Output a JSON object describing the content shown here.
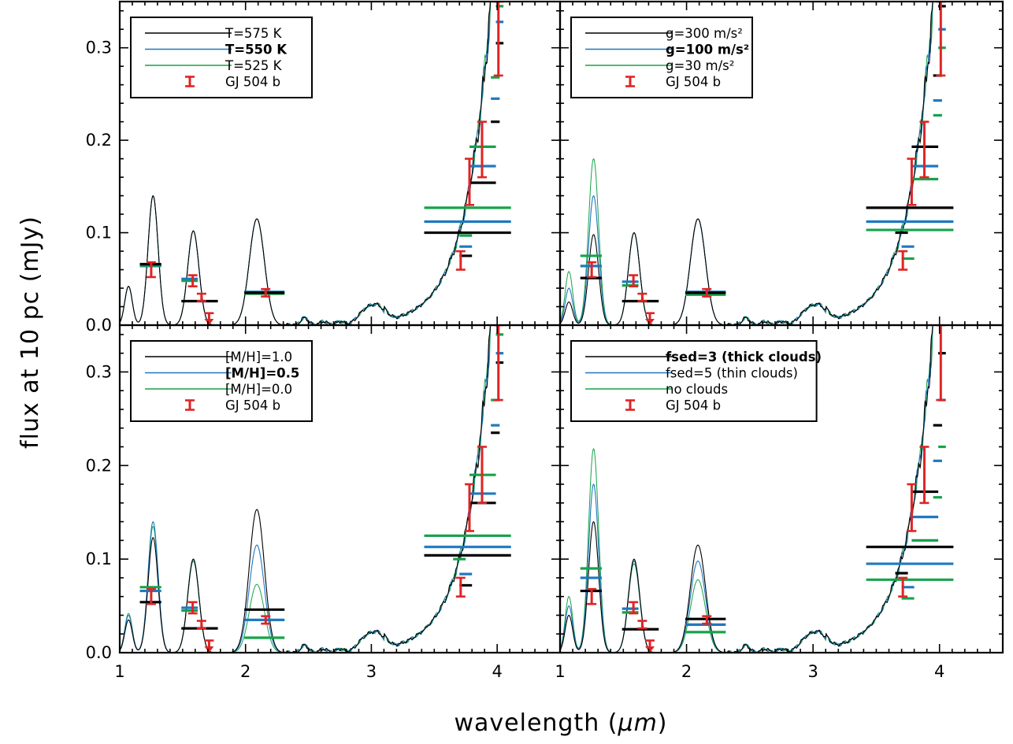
{
  "figure": {
    "xlabel_prefix": "wavelength (",
    "xlabel_symbol": "μm",
    "xlabel_suffix": ")",
    "ylabel": "flux at 10 pc (mJy)"
  },
  "colors": {
    "model_a": "#000000",
    "model_b": "#1f78c0",
    "model_c": "#16a34a",
    "observed": "#e02424"
  },
  "chart_data": [
    {
      "type": "line",
      "panel": "top-left",
      "xlim": [
        1.0,
        4.5
      ],
      "ylim": [
        0.0,
        0.35
      ],
      "xticks": [
        1,
        2,
        3,
        4
      ],
      "yticks": [
        0.0,
        0.1,
        0.2,
        0.3
      ],
      "ytick_labels": [
        "0.0",
        "0.1",
        "0.2",
        "0.3"
      ],
      "legend": {
        "position": "top-left",
        "entries": [
          {
            "label": "T=575 K",
            "color": "model_a",
            "bold": false
          },
          {
            "label": "T=550 K",
            "color": "model_b",
            "bold": true
          },
          {
            "label": "T=525 K",
            "color": "model_c",
            "bold": false
          },
          {
            "label": "GJ 504 b",
            "color": "observed",
            "marker": "errorbar"
          }
        ]
      },
      "spectra_peaks": {
        "model_a": [
          0.042,
          0.14,
          0.102,
          0.115
        ],
        "model_b": [
          0.042,
          0.14,
          0.102,
          0.115
        ],
        "model_c": [
          0.042,
          0.14,
          0.102,
          0.115
        ]
      },
      "band_fluxes": [
        {
          "series": "model_a",
          "bands": [
            [
              1.16,
              1.33,
              0.066
            ],
            [
              1.49,
              1.78,
              0.026
            ],
            [
              1.99,
              2.31,
              0.035
            ],
            [
              3.42,
              4.11,
              0.1
            ],
            [
              3.7,
              3.8,
              0.075
            ],
            [
              3.78,
              3.99,
              0.154
            ],
            [
              3.95,
              4.02,
              0.22
            ],
            [
              3.99,
              4.05,
              0.305
            ]
          ]
        },
        {
          "series": "model_b",
          "bands": [
            [
              1.16,
              1.33,
              0.065
            ],
            [
              1.49,
              1.62,
              0.05
            ],
            [
              1.99,
              2.31,
              0.036
            ],
            [
              3.42,
              4.11,
              0.112
            ],
            [
              3.7,
              3.8,
              0.085
            ],
            [
              3.78,
              3.99,
              0.172
            ],
            [
              3.95,
              4.02,
              0.245
            ],
            [
              3.99,
              4.05,
              0.328
            ]
          ]
        },
        {
          "series": "model_c",
          "bands": [
            [
              1.16,
              1.33,
              0.064
            ],
            [
              1.49,
              1.62,
              0.048
            ],
            [
              1.99,
              2.31,
              0.034
            ],
            [
              3.42,
              4.11,
              0.127
            ],
            [
              3.7,
              3.8,
              0.097
            ],
            [
              3.78,
              3.99,
              0.193
            ],
            [
              3.95,
              4.02,
              0.268
            ],
            [
              3.99,
              4.05,
              0.345
            ]
          ]
        }
      ],
      "observations": [
        {
          "x": 1.25,
          "y": 0.06,
          "lo": 0.052,
          "hi": 0.068
        },
        {
          "x": 1.58,
          "y": 0.048,
          "lo": 0.042,
          "hi": 0.054
        },
        {
          "x": 1.65,
          "y": 0.03,
          "lo": 0.026,
          "hi": 0.034
        },
        {
          "x": 1.71,
          "y": 0.005,
          "lo": 0.0,
          "hi": 0.013,
          "upper_limit": true
        },
        {
          "x": 2.16,
          "y": 0.035,
          "lo": 0.031,
          "hi": 0.039
        },
        {
          "x": 3.71,
          "y": 0.07,
          "lo": 0.06,
          "hi": 0.08
        },
        {
          "x": 3.78,
          "y": 0.155,
          "lo": 0.13,
          "hi": 0.18
        },
        {
          "x": 3.88,
          "y": 0.19,
          "lo": 0.16,
          "hi": 0.22
        },
        {
          "x": 4.01,
          "y": 0.31,
          "lo": 0.27,
          "hi": 0.35
        }
      ]
    },
    {
      "type": "line",
      "panel": "top-right",
      "xlim": [
        1.0,
        4.5
      ],
      "ylim": [
        0.0,
        0.35
      ],
      "xticks": [
        1,
        2,
        3,
        4
      ],
      "yticks": [
        0.0,
        0.1,
        0.2,
        0.3
      ],
      "ytick_labels": [
        "",
        "",
        "",
        ""
      ],
      "legend": {
        "position": "top-left",
        "entries": [
          {
            "label": "g=300 m/s²",
            "color": "model_a",
            "bold": false
          },
          {
            "label": "g=100 m/s²",
            "color": "model_b",
            "bold": true
          },
          {
            "label": "g=30 m/s²",
            "color": "model_c",
            "bold": false
          },
          {
            "label": "GJ 504 b",
            "color": "observed",
            "marker": "errorbar"
          }
        ]
      },
      "spectra_peaks": {
        "model_a": [
          0.025,
          0.098,
          0.1,
          0.115
        ],
        "model_b": [
          0.04,
          0.14,
          0.1,
          0.115
        ],
        "model_c": [
          0.058,
          0.18,
          0.1,
          0.115
        ]
      },
      "band_fluxes": [
        {
          "series": "model_a",
          "bands": [
            [
              1.16,
              1.33,
              0.051
            ],
            [
              1.49,
              1.78,
              0.026
            ],
            [
              1.99,
              2.31,
              0.035
            ],
            [
              3.42,
              4.11,
              0.127
            ],
            [
              3.65,
              3.75,
              0.1
            ],
            [
              3.78,
              3.99,
              0.193
            ],
            [
              3.95,
              4.02,
              0.27
            ],
            [
              3.99,
              4.05,
              0.345
            ]
          ]
        },
        {
          "series": "model_b",
          "bands": [
            [
              1.16,
              1.33,
              0.064
            ],
            [
              1.49,
              1.62,
              0.047
            ],
            [
              1.99,
              2.31,
              0.036
            ],
            [
              3.42,
              4.11,
              0.112
            ],
            [
              3.7,
              3.8,
              0.085
            ],
            [
              3.78,
              3.99,
              0.172
            ],
            [
              3.95,
              4.02,
              0.243
            ],
            [
              3.99,
              4.05,
              0.32
            ]
          ]
        },
        {
          "series": "model_c",
          "bands": [
            [
              1.16,
              1.33,
              0.075
            ],
            [
              1.49,
              1.62,
              0.043
            ],
            [
              1.99,
              2.31,
              0.033
            ],
            [
              3.42,
              4.11,
              0.103
            ],
            [
              3.7,
              3.8,
              0.072
            ],
            [
              3.78,
              3.99,
              0.158
            ],
            [
              3.95,
              4.02,
              0.227
            ],
            [
              3.99,
              4.05,
              0.3
            ]
          ]
        }
      ],
      "observations": [
        {
          "x": 1.25,
          "y": 0.06,
          "lo": 0.052,
          "hi": 0.068
        },
        {
          "x": 1.58,
          "y": 0.048,
          "lo": 0.042,
          "hi": 0.054
        },
        {
          "x": 1.65,
          "y": 0.03,
          "lo": 0.026,
          "hi": 0.034
        },
        {
          "x": 1.71,
          "y": 0.005,
          "lo": 0.0,
          "hi": 0.013,
          "upper_limit": true
        },
        {
          "x": 2.16,
          "y": 0.035,
          "lo": 0.031,
          "hi": 0.039
        },
        {
          "x": 3.71,
          "y": 0.07,
          "lo": 0.06,
          "hi": 0.08
        },
        {
          "x": 3.78,
          "y": 0.155,
          "lo": 0.13,
          "hi": 0.18
        },
        {
          "x": 3.88,
          "y": 0.19,
          "lo": 0.16,
          "hi": 0.22
        },
        {
          "x": 4.01,
          "y": 0.31,
          "lo": 0.27,
          "hi": 0.35
        }
      ]
    },
    {
      "type": "line",
      "panel": "bottom-left",
      "xlim": [
        1.0,
        4.5
      ],
      "ylim": [
        0.0,
        0.35
      ],
      "xticks": [
        1,
        2,
        3,
        4
      ],
      "yticks": [
        0.0,
        0.1,
        0.2,
        0.3
      ],
      "ytick_labels": [
        "0.0",
        "0.1",
        "0.2",
        "0.3"
      ],
      "xtick_labels": [
        "1",
        "2",
        "3",
        "4"
      ],
      "legend": {
        "position": "top-left",
        "entries": [
          {
            "label": "[M/H]=1.0",
            "color": "model_a",
            "bold": false
          },
          {
            "label": "[M/H]=0.5",
            "color": "model_b",
            "bold": true
          },
          {
            "label": "[M/H]=0.0",
            "color": "model_c",
            "bold": false
          },
          {
            "label": "GJ 504 b",
            "color": "observed",
            "marker": "errorbar"
          }
        ]
      },
      "spectra_peaks": {
        "model_a": [
          0.035,
          0.123,
          0.1,
          0.153
        ],
        "model_b": [
          0.04,
          0.14,
          0.1,
          0.115
        ],
        "model_c": [
          0.042,
          0.135,
          0.098,
          0.073
        ]
      },
      "band_fluxes": [
        {
          "series": "model_a",
          "bands": [
            [
              1.16,
              1.33,
              0.054
            ],
            [
              1.49,
              1.78,
              0.026
            ],
            [
              1.99,
              2.31,
              0.046
            ],
            [
              3.42,
              4.11,
              0.104
            ],
            [
              3.7,
              3.8,
              0.072
            ],
            [
              3.78,
              3.99,
              0.16
            ],
            [
              3.95,
              4.02,
              0.235
            ],
            [
              3.99,
              4.05,
              0.31
            ]
          ]
        },
        {
          "series": "model_b",
          "bands": [
            [
              1.16,
              1.33,
              0.066
            ],
            [
              1.49,
              1.62,
              0.048
            ],
            [
              1.99,
              2.31,
              0.035
            ],
            [
              3.42,
              4.11,
              0.113
            ],
            [
              3.7,
              3.8,
              0.084
            ],
            [
              3.78,
              3.99,
              0.17
            ],
            [
              3.95,
              4.02,
              0.243
            ],
            [
              3.99,
              4.05,
              0.32
            ]
          ]
        },
        {
          "series": "model_c",
          "bands": [
            [
              1.16,
              1.33,
              0.07
            ],
            [
              1.49,
              1.62,
              0.045
            ],
            [
              1.99,
              2.31,
              0.016
            ],
            [
              3.42,
              4.11,
              0.125
            ],
            [
              3.65,
              3.75,
              0.1
            ],
            [
              3.78,
              3.99,
              0.19
            ],
            [
              3.95,
              4.02,
              0.27
            ],
            [
              3.99,
              4.05,
              0.34
            ]
          ]
        }
      ],
      "observations": [
        {
          "x": 1.25,
          "y": 0.06,
          "lo": 0.052,
          "hi": 0.068
        },
        {
          "x": 1.58,
          "y": 0.048,
          "lo": 0.042,
          "hi": 0.054
        },
        {
          "x": 1.65,
          "y": 0.03,
          "lo": 0.026,
          "hi": 0.034
        },
        {
          "x": 1.71,
          "y": 0.005,
          "lo": 0.0,
          "hi": 0.013,
          "upper_limit": true
        },
        {
          "x": 2.16,
          "y": 0.035,
          "lo": 0.031,
          "hi": 0.039
        },
        {
          "x": 3.71,
          "y": 0.07,
          "lo": 0.06,
          "hi": 0.08
        },
        {
          "x": 3.78,
          "y": 0.155,
          "lo": 0.13,
          "hi": 0.18
        },
        {
          "x": 3.88,
          "y": 0.19,
          "lo": 0.16,
          "hi": 0.22
        },
        {
          "x": 4.01,
          "y": 0.31,
          "lo": 0.27,
          "hi": 0.35
        }
      ]
    },
    {
      "type": "line",
      "panel": "bottom-right",
      "xlim": [
        1.0,
        4.5
      ],
      "ylim": [
        0.0,
        0.35
      ],
      "xticks": [
        1,
        2,
        3,
        4
      ],
      "yticks": [
        0.0,
        0.1,
        0.2,
        0.3
      ],
      "ytick_labels": [
        "",
        "",
        "",
        ""
      ],
      "xtick_labels": [
        "1",
        "2",
        "3",
        "4"
      ],
      "legend": {
        "position": "top-left",
        "entries": [
          {
            "label": "fsed=3 (thick clouds)",
            "color": "model_a",
            "bold": true
          },
          {
            "label": "fsed=5 (thin clouds)",
            "color": "model_b",
            "bold": false
          },
          {
            "label": "no clouds",
            "color": "model_c",
            "bold": false
          },
          {
            "label": "GJ 504 b",
            "color": "observed",
            "marker": "errorbar"
          }
        ]
      },
      "spectra_peaks": {
        "model_a": [
          0.04,
          0.14,
          0.1,
          0.115
        ],
        "model_b": [
          0.05,
          0.18,
          0.098,
          0.098
        ],
        "model_c": [
          0.06,
          0.218,
          0.095,
          0.078
        ]
      },
      "band_fluxes": [
        {
          "series": "model_a",
          "bands": [
            [
              1.16,
              1.33,
              0.066
            ],
            [
              1.49,
              1.78,
              0.025
            ],
            [
              1.99,
              2.31,
              0.036
            ],
            [
              3.42,
              4.11,
              0.113
            ],
            [
              3.65,
              3.75,
              0.085
            ],
            [
              3.78,
              3.99,
              0.172
            ],
            [
              3.95,
              4.02,
              0.243
            ],
            [
              3.99,
              4.05,
              0.32
            ]
          ]
        },
        {
          "series": "model_b",
          "bands": [
            [
              1.16,
              1.33,
              0.08
            ],
            [
              1.49,
              1.62,
              0.047
            ],
            [
              1.99,
              2.31,
              0.03
            ],
            [
              3.42,
              4.11,
              0.095
            ],
            [
              3.7,
              3.8,
              0.07
            ],
            [
              3.78,
              3.99,
              0.145
            ],
            [
              3.95,
              4.02,
              0.205
            ],
            [
              3.99,
              4.05,
              0.27
            ]
          ]
        },
        {
          "series": "model_c",
          "bands": [
            [
              1.16,
              1.33,
              0.09
            ],
            [
              1.49,
              1.62,
              0.043
            ],
            [
              1.99,
              2.31,
              0.022
            ],
            [
              3.42,
              4.11,
              0.078
            ],
            [
              3.7,
              3.8,
              0.058
            ],
            [
              3.78,
              3.99,
              0.12
            ],
            [
              3.95,
              4.02,
              0.166
            ],
            [
              3.99,
              4.05,
              0.22
            ]
          ]
        }
      ],
      "observations": [
        {
          "x": 1.25,
          "y": 0.06,
          "lo": 0.052,
          "hi": 0.068
        },
        {
          "x": 1.58,
          "y": 0.048,
          "lo": 0.042,
          "hi": 0.054
        },
        {
          "x": 1.65,
          "y": 0.03,
          "lo": 0.026,
          "hi": 0.034
        },
        {
          "x": 1.71,
          "y": 0.005,
          "lo": 0.0,
          "hi": 0.013,
          "upper_limit": true
        },
        {
          "x": 2.16,
          "y": 0.035,
          "lo": 0.031,
          "hi": 0.039
        },
        {
          "x": 3.71,
          "y": 0.07,
          "lo": 0.06,
          "hi": 0.08
        },
        {
          "x": 3.78,
          "y": 0.155,
          "lo": 0.13,
          "hi": 0.18
        },
        {
          "x": 3.88,
          "y": 0.19,
          "lo": 0.16,
          "hi": 0.22
        },
        {
          "x": 4.01,
          "y": 0.31,
          "lo": 0.27,
          "hi": 0.35
        }
      ]
    }
  ]
}
